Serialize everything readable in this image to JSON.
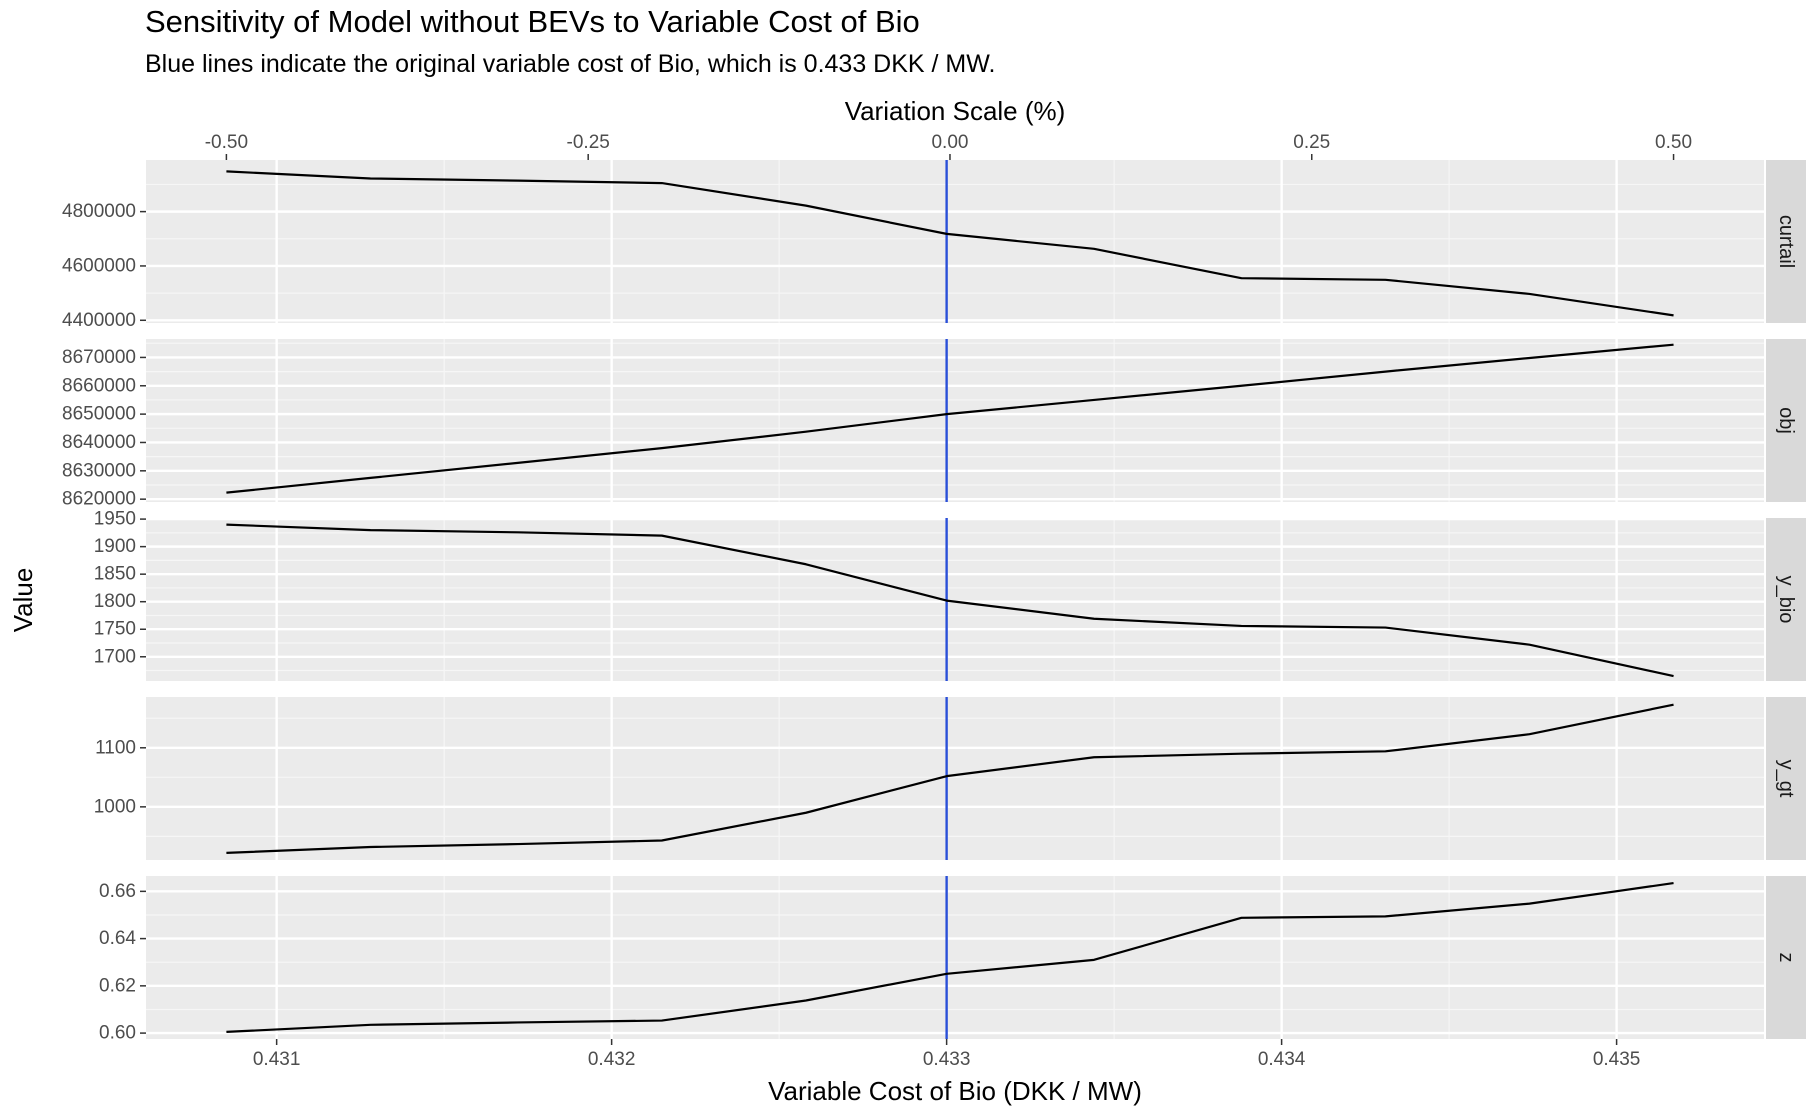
{
  "chart_data": {
    "type": "line",
    "title": "Sensitivity of Model without BEVs to Variable Cost of Bio",
    "subtitle": "Blue lines indicate the original variable cost of Bio, which is 0.433 DKK / MW.",
    "xlabel": "Variable Cost of Bio (DKK / MW)",
    "x2label": "Variation Scale (%)",
    "ylabel": "Value",
    "x": [
      0.43085,
      0.43128,
      0.43172,
      0.43215,
      0.43258,
      0.433,
      0.43344,
      0.43388,
      0.43431,
      0.43474,
      0.43517
    ],
    "xlim": [
      0.43061,
      0.43544
    ],
    "x_ticks": [
      0.431,
      0.432,
      0.433,
      0.434,
      0.435
    ],
    "x_tick_labels": [
      "0.431",
      "0.432",
      "0.433",
      "0.434",
      "0.435"
    ],
    "x2_ticks": [
      -0.5,
      -0.25,
      0,
      0.25,
      0.5
    ],
    "x2_tick_labels": [
      "-0.50",
      "-0.25",
      "0.00",
      "0.25",
      "0.50"
    ],
    "x2_at_xmin": -0.5,
    "x2_at_xmax": 0.5,
    "reference_x": 0.433,
    "reference_color": "#2a4fd7",
    "line_color": "#000000",
    "panel_background": "#ebebeb",
    "grid": true,
    "panels": [
      {
        "strip": "curtail",
        "ylim": [
          4390000,
          4990000
        ],
        "y_ticks": [
          4400000,
          4600000,
          4800000
        ],
        "y_tick_labels": [
          "4400000",
          "4600000",
          "4800000"
        ],
        "values": [
          4948000,
          4922000,
          4914000,
          4905000,
          4822000,
          4718000,
          4663000,
          4555000,
          4549000,
          4497000,
          4418000
        ]
      },
      {
        "strip": "obj",
        "ylim": [
          8619000,
          8676500
        ],
        "y_ticks": [
          8620000,
          8630000,
          8640000,
          8650000,
          8660000,
          8670000
        ],
        "y_tick_labels": [
          "8620000",
          "8630000",
          "8640000",
          "8650000",
          "8660000",
          "8670000"
        ],
        "values": [
          8622300,
          8627500,
          8632800,
          8638000,
          8643800,
          8650000,
          8655000,
          8660000,
          8665000,
          8669800,
          8674500
        ]
      },
      {
        "strip": "y_bio",
        "ylim": [
          1656,
          1952
        ],
        "y_ticks": [
          1700,
          1750,
          1800,
          1850,
          1900,
          1950
        ],
        "y_tick_labels": [
          "1700",
          "1750",
          "1800",
          "1850",
          "1900",
          "1950"
        ],
        "values": [
          1940,
          1930,
          1926,
          1920,
          1868,
          1802,
          1769,
          1756,
          1753,
          1722,
          1665
        ]
      },
      {
        "strip": "y_gt",
        "ylim": [
          910,
          1186
        ],
        "y_ticks": [
          1000,
          1100
        ],
        "y_tick_labels": [
          "1000",
          "1100"
        ],
        "values": [
          922,
          932,
          937,
          943,
          990,
          1052,
          1084,
          1090,
          1094,
          1123,
          1173
        ]
      },
      {
        "strip": "z",
        "ylim": [
          0.5975,
          0.6665
        ],
        "y_ticks": [
          0.6,
          0.62,
          0.64,
          0.66
        ],
        "y_tick_labels": [
          "0.60",
          "0.62",
          "0.64",
          "0.66"
        ],
        "values": [
          0.6005,
          0.6035,
          0.6045,
          0.6053,
          0.6138,
          0.6251,
          0.631,
          0.6488,
          0.6494,
          0.6548,
          0.6635
        ]
      }
    ]
  }
}
